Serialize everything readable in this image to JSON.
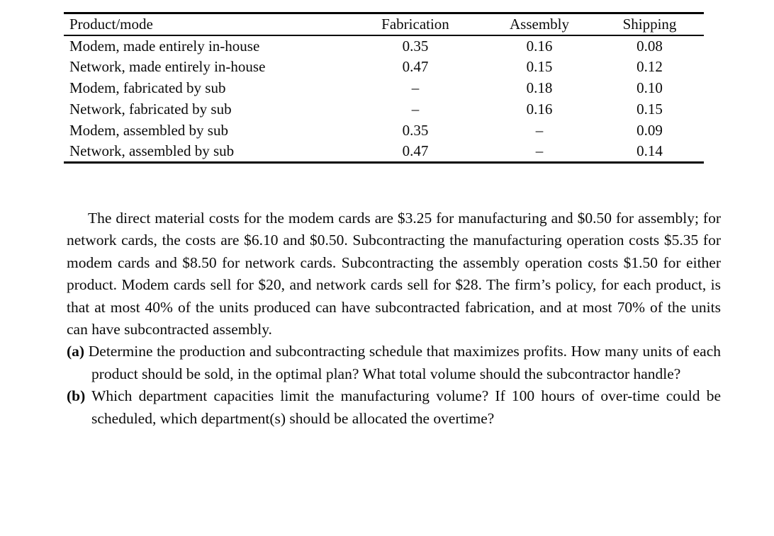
{
  "colors": {
    "background": "#ffffff",
    "text": "#0b0b0b",
    "rule": "#000000"
  },
  "table": {
    "headers": [
      "Product/mode",
      "Fabrication",
      "Assembly",
      "Shipping"
    ],
    "rows": [
      [
        "Modem, made entirely in-house",
        "0.35",
        "0.16",
        "0.08"
      ],
      [
        "Network, made entirely in-house",
        "0.47",
        "0.15",
        "0.12"
      ],
      [
        "Modem, fabricated by sub",
        "–",
        "0.18",
        "0.10"
      ],
      [
        "Network, fabricated by sub",
        "–",
        "0.16",
        "0.15"
      ],
      [
        "Modem, assembled by sub",
        "0.35",
        "–",
        "0.09"
      ],
      [
        "Network, assembled by sub",
        "0.47",
        "–",
        "0.14"
      ]
    ]
  },
  "paragraph": "The direct material costs for the modem cards are $3.25 for manufacturing and $0.50 for assembly; for network cards, the costs are $6.10 and $0.50. Subcontracting the manufacturing operation costs $5.35 for modem cards and $8.50 for network cards. Subcontracting the assembly operation costs $1.50 for either product. Modem cards sell for $20, and network cards sell for $28. The firm’s policy, for each product, is that at most 40% of the units produced can have subcontracted fabrication, and at most 70% of the units can have subcontracted assembly.",
  "questions": [
    {
      "marker": "(a)",
      "text": "Determine the production and subcontracting schedule that maximizes profits. How many units of each product should be sold, in the optimal plan? What total volume should the subcontractor handle?"
    },
    {
      "marker": "(b)",
      "text": "Which department capacities limit the manufacturing volume? If 100 hours of over-time could be scheduled, which department(s) should be allocated the overtime?"
    }
  ]
}
